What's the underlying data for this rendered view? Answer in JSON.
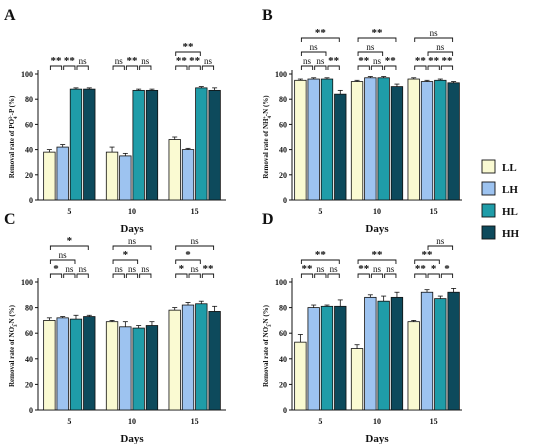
{
  "legend": {
    "entries": [
      {
        "name": "LL",
        "color": "#FAFAD2"
      },
      {
        "name": "LH",
        "color": "#9DC3F0"
      },
      {
        "name": "HL",
        "color": "#1F9CA8"
      },
      {
        "name": "HH",
        "color": "#0D4A5C"
      }
    ]
  },
  "chart_data": [
    {
      "panel": "A",
      "type": "bar",
      "ylabel_pre": "Removal rate of PO",
      "ylabel_sub": "4",
      "ylabel_sup": "3-",
      "ylabel_post": "-P (%)",
      "xlabel": "Days",
      "categories": [
        "5",
        "10",
        "15"
      ],
      "ylim": [
        0,
        100
      ],
      "yticks": [
        "0",
        "20",
        "40",
        "60",
        "80",
        "100"
      ],
      "series": [
        {
          "name": "LL",
          "values": [
            38,
            38,
            48
          ],
          "errors": [
            2,
            4,
            2
          ]
        },
        {
          "name": "LH",
          "values": [
            42,
            35,
            40
          ],
          "errors": [
            2,
            2,
            1
          ]
        },
        {
          "name": "HL",
          "values": [
            88,
            87,
            89
          ],
          "errors": [
            1,
            1,
            1
          ]
        },
        {
          "name": "HH",
          "values": [
            88,
            87,
            87
          ],
          "errors": [
            1,
            1,
            2
          ]
        }
      ],
      "brackets": [
        {
          "group": 0,
          "from": 0,
          "to": 1,
          "level": 0,
          "label": "**"
        },
        {
          "group": 0,
          "from": 1,
          "to": 2,
          "level": 0,
          "label": "**"
        },
        {
          "group": 0,
          "from": 2,
          "to": 3,
          "level": 0,
          "label": "ns"
        },
        {
          "group": 1,
          "from": 0,
          "to": 1,
          "level": 0,
          "label": "ns"
        },
        {
          "group": 1,
          "from": 1,
          "to": 2,
          "level": 0,
          "label": "**"
        },
        {
          "group": 1,
          "from": 2,
          "to": 3,
          "level": 0,
          "label": "ns"
        },
        {
          "group": 2,
          "from": 0,
          "to": 1,
          "level": 0,
          "label": "**"
        },
        {
          "group": 2,
          "from": 1,
          "to": 2,
          "level": 0,
          "label": "**"
        },
        {
          "group": 2,
          "from": 2,
          "to": 3,
          "level": 0,
          "label": "ns"
        },
        {
          "group": 2,
          "from": 0,
          "to": 2,
          "level": 1,
          "label": "**"
        }
      ]
    },
    {
      "panel": "B",
      "type": "bar",
      "ylabel_pre": "Removal rate of NH",
      "ylabel_sub": "4",
      "ylabel_sup": "+",
      "ylabel_post": "-N (%)",
      "xlabel": "Days",
      "categories": [
        "5",
        "10",
        "15"
      ],
      "ylim": [
        0,
        100
      ],
      "yticks": [
        "0",
        "20",
        "40",
        "60",
        "80",
        "100"
      ],
      "series": [
        {
          "name": "LL",
          "values": [
            95,
            94,
            96
          ],
          "errors": [
            1,
            1,
            1
          ]
        },
        {
          "name": "LH",
          "values": [
            96,
            97,
            94
          ],
          "errors": [
            1,
            1,
            1
          ]
        },
        {
          "name": "HL",
          "values": [
            96,
            97,
            95
          ],
          "errors": [
            1,
            1,
            1
          ]
        },
        {
          "name": "HH",
          "values": [
            84,
            90,
            93
          ],
          "errors": [
            3,
            2,
            1
          ]
        }
      ],
      "brackets": [
        {
          "group": 0,
          "from": 0,
          "to": 1,
          "level": 0,
          "label": "ns"
        },
        {
          "group": 0,
          "from": 1,
          "to": 2,
          "level": 0,
          "label": "ns"
        },
        {
          "group": 0,
          "from": 2,
          "to": 3,
          "level": 0,
          "label": "**"
        },
        {
          "group": 0,
          "from": 0,
          "to": 2,
          "level": 1,
          "label": "ns"
        },
        {
          "group": 0,
          "from": 0,
          "to": 3,
          "level": 2,
          "label": "**"
        },
        {
          "group": 1,
          "from": 0,
          "to": 1,
          "level": 0,
          "label": "**"
        },
        {
          "group": 1,
          "from": 1,
          "to": 2,
          "level": 0,
          "label": "ns"
        },
        {
          "group": 1,
          "from": 2,
          "to": 3,
          "level": 0,
          "label": "**"
        },
        {
          "group": 1,
          "from": 0,
          "to": 2,
          "level": 1,
          "label": "ns"
        },
        {
          "group": 1,
          "from": 0,
          "to": 3,
          "level": 2,
          "label": "**"
        },
        {
          "group": 2,
          "from": 0,
          "to": 1,
          "level": 0,
          "label": "**"
        },
        {
          "group": 2,
          "from": 1,
          "to": 2,
          "level": 0,
          "label": "**"
        },
        {
          "group": 2,
          "from": 2,
          "to": 3,
          "level": 0,
          "label": "**"
        },
        {
          "group": 2,
          "from": 1,
          "to": 3,
          "level": 1,
          "label": "ns"
        },
        {
          "group": 2,
          "from": 0,
          "to": 3,
          "level": 2,
          "label": "ns"
        }
      ]
    },
    {
      "panel": "C",
      "type": "bar",
      "ylabel_pre": "Removal rate of NO",
      "ylabel_sub": "3",
      "ylabel_sup": "-",
      "ylabel_post": "-N (%)",
      "xlabel": "Days",
      "categories": [
        "5",
        "10",
        "15"
      ],
      "ylim": [
        0,
        100
      ],
      "yticks": [
        "0",
        "20",
        "40",
        "60",
        "80",
        "100"
      ],
      "series": [
        {
          "name": "LL",
          "values": [
            70,
            69,
            78
          ],
          "errors": [
            2,
            1,
            2
          ]
        },
        {
          "name": "LH",
          "values": [
            72,
            65,
            82
          ],
          "errors": [
            1,
            4,
            2
          ]
        },
        {
          "name": "HL",
          "values": [
            71,
            64,
            83
          ],
          "errors": [
            3,
            2,
            2
          ]
        },
        {
          "name": "HH",
          "values": [
            73,
            66,
            77
          ],
          "errors": [
            1,
            3,
            4
          ]
        }
      ],
      "brackets": [
        {
          "group": 0,
          "from": 0,
          "to": 1,
          "level": 0,
          "label": "*"
        },
        {
          "group": 0,
          "from": 1,
          "to": 2,
          "level": 0,
          "label": "ns"
        },
        {
          "group": 0,
          "from": 2,
          "to": 3,
          "level": 0,
          "label": "ns"
        },
        {
          "group": 0,
          "from": 0,
          "to": 2,
          "level": 1,
          "label": "ns"
        },
        {
          "group": 0,
          "from": 0,
          "to": 3,
          "level": 2,
          "label": "*"
        },
        {
          "group": 1,
          "from": 0,
          "to": 1,
          "level": 0,
          "label": "ns"
        },
        {
          "group": 1,
          "from": 1,
          "to": 2,
          "level": 0,
          "label": "ns"
        },
        {
          "group": 1,
          "from": 2,
          "to": 3,
          "level": 0,
          "label": "ns"
        },
        {
          "group": 1,
          "from": 0,
          "to": 2,
          "level": 1,
          "label": "*"
        },
        {
          "group": 1,
          "from": 0,
          "to": 3,
          "level": 2,
          "label": "ns"
        },
        {
          "group": 2,
          "from": 0,
          "to": 1,
          "level": 0,
          "label": "*"
        },
        {
          "group": 2,
          "from": 1,
          "to": 2,
          "level": 0,
          "label": "ns"
        },
        {
          "group": 2,
          "from": 2,
          "to": 3,
          "level": 0,
          "label": "**"
        },
        {
          "group": 2,
          "from": 0,
          "to": 2,
          "level": 1,
          "label": "*"
        },
        {
          "group": 2,
          "from": 0,
          "to": 3,
          "level": 2,
          "label": "ns"
        }
      ]
    },
    {
      "panel": "D",
      "type": "bar",
      "ylabel_pre": "Removal rate of NO",
      "ylabel_sub": "3",
      "ylabel_sup": "-",
      "ylabel_post": "-N (%)",
      "xlabel": "Days",
      "categories": [
        "5",
        "10",
        "15"
      ],
      "ylim": [
        0,
        100
      ],
      "yticks": [
        "0",
        "20",
        "40",
        "60",
        "80",
        "100"
      ],
      "series": [
        {
          "name": "LL",
          "values": [
            53,
            48,
            69
          ],
          "errors": [
            6,
            3,
            1
          ]
        },
        {
          "name": "LH",
          "values": [
            80,
            88,
            92
          ],
          "errors": [
            2,
            2,
            2
          ]
        },
        {
          "name": "HL",
          "values": [
            81,
            85,
            87
          ],
          "errors": [
            1,
            4,
            2
          ]
        },
        {
          "name": "HH",
          "values": [
            81,
            88,
            92
          ],
          "errors": [
            5,
            4,
            3
          ]
        }
      ],
      "brackets": [
        {
          "group": 0,
          "from": 0,
          "to": 1,
          "level": 0,
          "label": "**"
        },
        {
          "group": 0,
          "from": 1,
          "to": 2,
          "level": 0,
          "label": "ns"
        },
        {
          "group": 0,
          "from": 2,
          "to": 3,
          "level": 0,
          "label": "ns"
        },
        {
          "group": 0,
          "from": 0,
          "to": 3,
          "level": 1,
          "label": "**"
        },
        {
          "group": 1,
          "from": 0,
          "to": 1,
          "level": 0,
          "label": "**"
        },
        {
          "group": 1,
          "from": 1,
          "to": 2,
          "level": 0,
          "label": "ns"
        },
        {
          "group": 1,
          "from": 2,
          "to": 3,
          "level": 0,
          "label": "ns"
        },
        {
          "group": 1,
          "from": 0,
          "to": 3,
          "level": 1,
          "label": "**"
        },
        {
          "group": 2,
          "from": 0,
          "to": 1,
          "level": 0,
          "label": "**"
        },
        {
          "group": 2,
          "from": 1,
          "to": 2,
          "level": 0,
          "label": "*"
        },
        {
          "group": 2,
          "from": 2,
          "to": 3,
          "level": 0,
          "label": "*"
        },
        {
          "group": 2,
          "from": 0,
          "to": 2,
          "level": 1,
          "label": "**"
        },
        {
          "group": 2,
          "from": 1,
          "to": 3,
          "level": 2,
          "label": "ns"
        }
      ]
    }
  ]
}
